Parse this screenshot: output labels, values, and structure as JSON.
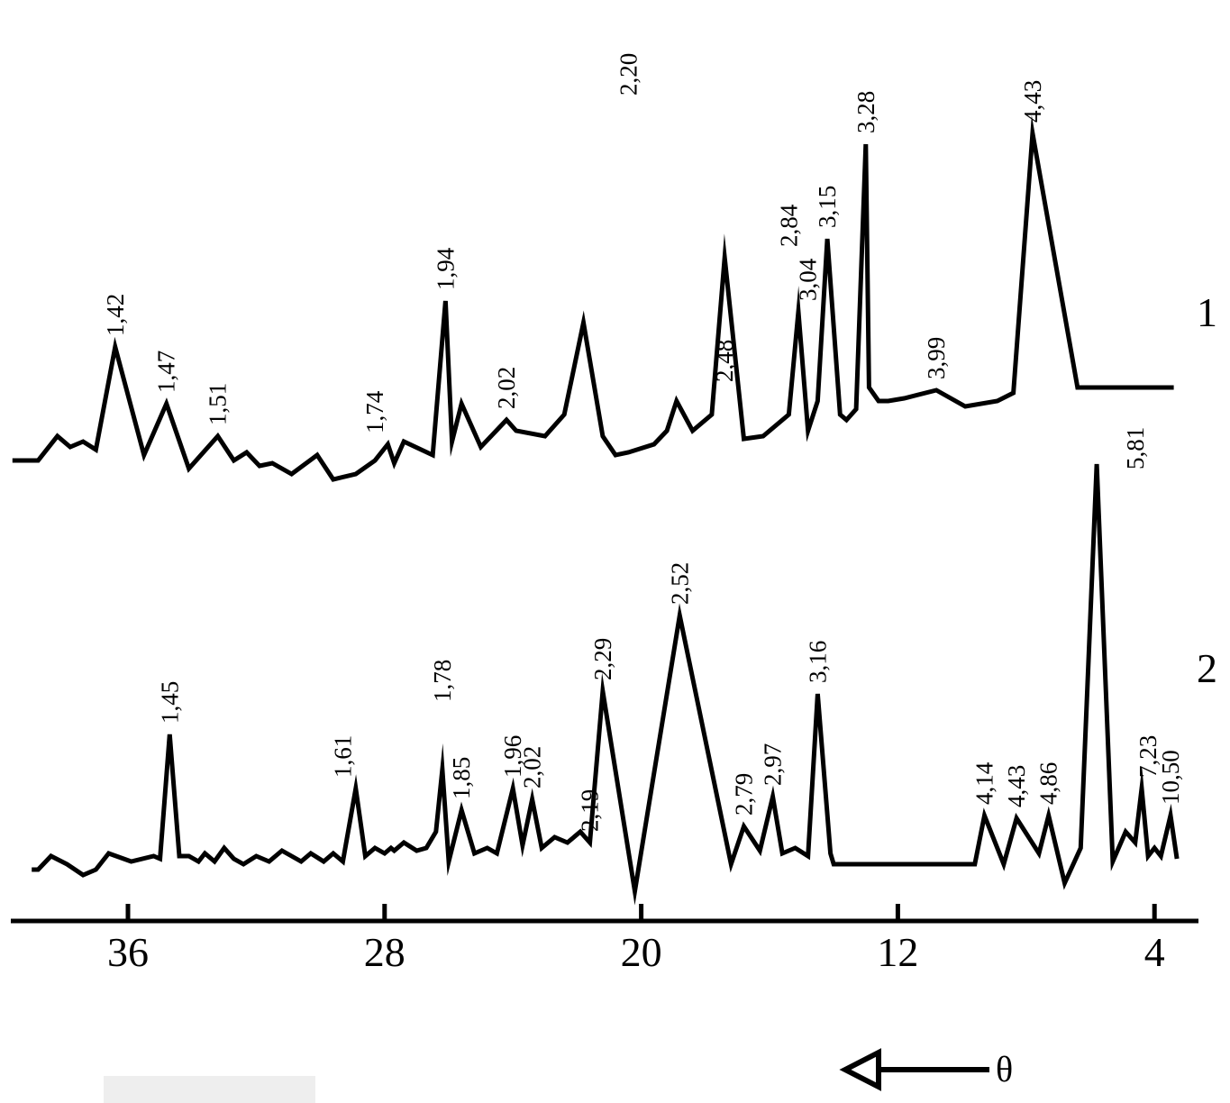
{
  "chart_data": {
    "type": "line",
    "title": "",
    "xlabel": "",
    "ylabel": "",
    "x_reversed": true,
    "xlim": [
      40.0,
      3.0
    ],
    "xticks": [
      36,
      28,
      20,
      12,
      4
    ],
    "direction_label": "θ",
    "colors": {
      "line": "#000000",
      "axis": "#000000"
    },
    "series": [
      {
        "name": "1",
        "x": [
          39.6,
          38.8,
          38.2,
          37.8,
          37.4,
          37.0,
          36.4,
          35.5,
          34.8,
          34.1,
          33.2,
          32.7,
          32.3,
          31.9,
          31.5,
          30.9,
          30.1,
          29.6,
          28.9,
          28.3,
          27.9,
          27.7,
          27.4,
          26.5,
          26.1,
          25.9,
          25.6,
          25.0,
          24.2,
          23.9,
          23.0,
          22.4,
          21.8,
          21.2,
          20.8,
          20.4,
          19.6,
          19.2,
          18.9,
          18.4,
          17.8,
          17.4,
          16.8,
          16.2,
          15.4,
          15.1,
          14.8,
          14.5,
          14.2,
          13.8,
          13.6,
          13.3,
          13.0,
          12.9,
          12.6,
          12.3,
          11.8,
          10.8,
          9.9,
          8.9,
          8.4,
          7.8,
          6.4,
          3.4
        ],
        "y": [
          0.03,
          0.03,
          0.12,
          0.08,
          0.1,
          0.07,
          0.45,
          0.05,
          0.24,
          0.0,
          0.12,
          0.03,
          0.06,
          0.01,
          0.02,
          -0.02,
          0.05,
          -0.04,
          -0.02,
          0.03,
          0.09,
          0.02,
          0.1,
          0.05,
          0.62,
          0.1,
          0.24,
          0.08,
          0.18,
          0.14,
          0.12,
          0.2,
          0.54,
          0.12,
          0.05,
          0.06,
          0.09,
          0.14,
          0.25,
          0.14,
          0.2,
          0.78,
          0.11,
          0.12,
          0.2,
          0.58,
          0.14,
          0.25,
          0.85,
          0.2,
          0.18,
          0.22,
          1.2,
          0.3,
          0.25,
          0.25,
          0.26,
          0.29,
          0.23,
          0.25,
          0.28,
          1.24,
          0.3,
          0.3
        ],
        "peak_labels": [
          {
            "label": "1,42",
            "x": 36.4,
            "y": 0.45
          },
          {
            "label": "1,47",
            "x": 34.8,
            "y": 0.24
          },
          {
            "label": "1,51",
            "x": 33.2,
            "y": 0.12
          },
          {
            "label": "1,74",
            "x": 28.3,
            "y": 0.09
          },
          {
            "label": "1,94",
            "x": 26.1,
            "y": 0.62
          },
          {
            "label": "2,02",
            "x": 24.2,
            "y": 0.18
          },
          {
            "label": "2,20",
            "x": 20.4,
            "y": 1.34
          },
          {
            "label": "2,48",
            "x": 17.4,
            "y": 0.28
          },
          {
            "label": "2,84",
            "x": 15.4,
            "y": 0.78
          },
          {
            "label": "3,04",
            "x": 14.8,
            "y": 0.58
          },
          {
            "label": "3,15",
            "x": 14.2,
            "y": 0.85
          },
          {
            "label": "3,28",
            "x": 13.0,
            "y": 1.2
          },
          {
            "label": "3,99",
            "x": 10.8,
            "y": 0.29
          },
          {
            "label": "4,43",
            "x": 7.8,
            "y": 1.24
          }
        ]
      },
      {
        "name": "2",
        "x": [
          39.0,
          38.8,
          38.4,
          37.9,
          37.4,
          37.0,
          36.6,
          35.9,
          35.2,
          35.0,
          34.7,
          34.4,
          34.1,
          33.8,
          33.6,
          33.3,
          33.0,
          32.7,
          32.4,
          32.0,
          31.6,
          31.2,
          30.9,
          30.6,
          30.3,
          29.9,
          29.6,
          29.3,
          28.9,
          28.6,
          28.3,
          28.0,
          27.8,
          27.7,
          27.4,
          27.0,
          26.7,
          26.4,
          26.2,
          26.0,
          25.6,
          25.2,
          24.8,
          24.5,
          24.0,
          23.7,
          23.4,
          23.1,
          22.7,
          22.3,
          21.9,
          21.6,
          21.2,
          20.2,
          18.8,
          17.2,
          16.8,
          16.3,
          15.9,
          15.6,
          15.2,
          14.8,
          14.5,
          14.1,
          14.0,
          13.6,
          13.2,
          12.9,
          12.6,
          12.3,
          12.0,
          11.7,
          11.4,
          11.1,
          10.8,
          10.5,
          10.2,
          9.9,
          9.6,
          9.3,
          8.7,
          8.3,
          7.6,
          7.3,
          6.8,
          6.3,
          5.8,
          5.3,
          4.9,
          4.6,
          4.4,
          4.2,
          4.0,
          3.8,
          3.5,
          3.3
        ],
        "y": [
          0.0,
          0.0,
          0.05,
          0.02,
          -0.02,
          0.0,
          0.06,
          0.03,
          0.05,
          0.04,
          0.5,
          0.05,
          0.05,
          0.03,
          0.06,
          0.03,
          0.08,
          0.04,
          0.02,
          0.05,
          0.03,
          0.07,
          0.05,
          0.03,
          0.06,
          0.03,
          0.06,
          0.03,
          0.3,
          0.05,
          0.08,
          0.06,
          0.08,
          0.07,
          0.1,
          0.07,
          0.08,
          0.14,
          0.37,
          0.03,
          0.22,
          0.06,
          0.08,
          0.06,
          0.3,
          0.09,
          0.26,
          0.08,
          0.12,
          0.1,
          0.14,
          0.1,
          0.66,
          -0.08,
          0.94,
          0.02,
          0.16,
          0.07,
          0.27,
          0.06,
          0.08,
          0.05,
          0.65,
          0.06,
          0.02,
          0.02,
          0.02,
          0.02,
          0.02,
          0.02,
          0.02,
          0.02,
          0.02,
          0.02,
          0.02,
          0.02,
          0.02,
          0.02,
          0.02,
          0.2,
          0.02,
          0.19,
          0.06,
          0.2,
          -0.05,
          0.08,
          1.5,
          0.03,
          0.14,
          0.1,
          0.3,
          0.05,
          0.08,
          0.05,
          0.2,
          0.04
        ],
        "peak_labels": [
          {
            "label": "1,45",
            "x": 34.7,
            "y": 0.5
          },
          {
            "label": "1,61",
            "x": 29.3,
            "y": 0.3
          },
          {
            "label": "1,78",
            "x": 26.2,
            "y": 0.58
          },
          {
            "label": "1,85",
            "x": 25.6,
            "y": 0.22
          },
          {
            "label": "1,96",
            "x": 24.0,
            "y": 0.3
          },
          {
            "label": "2,02",
            "x": 23.4,
            "y": 0.26
          },
          {
            "label": "2,19",
            "x": 21.6,
            "y": 0.1
          },
          {
            "label": "2,29",
            "x": 21.2,
            "y": 0.66
          },
          {
            "label": "2,52",
            "x": 18.8,
            "y": 0.94
          },
          {
            "label": "2,79",
            "x": 16.8,
            "y": 0.16
          },
          {
            "label": "2,97",
            "x": 15.9,
            "y": 0.27
          },
          {
            "label": "3,16",
            "x": 14.5,
            "y": 0.65
          },
          {
            "label": "4,14",
            "x": 9.3,
            "y": 0.2
          },
          {
            "label": "4,43",
            "x": 8.3,
            "y": 0.19
          },
          {
            "label": "4,86",
            "x": 7.3,
            "y": 0.2
          },
          {
            "label": "5,81",
            "x": 4.6,
            "y": 1.44
          },
          {
            "label": "7,23",
            "x": 4.2,
            "y": 0.3
          },
          {
            "label": "10,50",
            "x": 3.5,
            "y": 0.2
          }
        ]
      }
    ]
  }
}
